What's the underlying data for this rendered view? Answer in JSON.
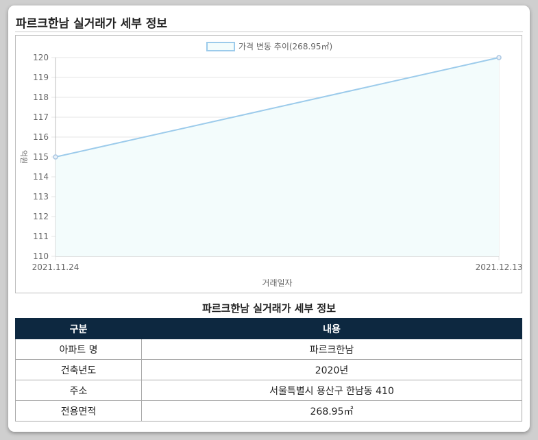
{
  "page_title": "파르크한남 실거래가 세부 정보",
  "chart_data": {
    "type": "line",
    "title": "",
    "xlabel": "거래일자",
    "ylabel": "억원",
    "ylim": [
      110,
      120
    ],
    "yticks": [
      110,
      111,
      112,
      113,
      114,
      115,
      116,
      117,
      118,
      119,
      120
    ],
    "categories": [
      "2021.11.24",
      "2021.12.13"
    ],
    "series": [
      {
        "name": "가격 변동 추이(268.95㎡)",
        "values": [
          115,
          120
        ]
      }
    ],
    "legend": "top-center",
    "grid": true,
    "colors": {
      "line": "#9ccbeb",
      "fill": "#f3fcfc",
      "point": "#a9c6e2",
      "grid": "#e4e4e4"
    }
  },
  "table": {
    "title": "파르크한남 실거래가 세부 정보",
    "headers": [
      "구분",
      "내용"
    ],
    "rows": [
      [
        "아파트 명",
        "파르크한남"
      ],
      [
        "건축년도",
        "2020년"
      ],
      [
        "주소",
        "서울특별시 용산구 한남동 410"
      ],
      [
        "전용면적",
        "268.95㎡"
      ]
    ]
  }
}
